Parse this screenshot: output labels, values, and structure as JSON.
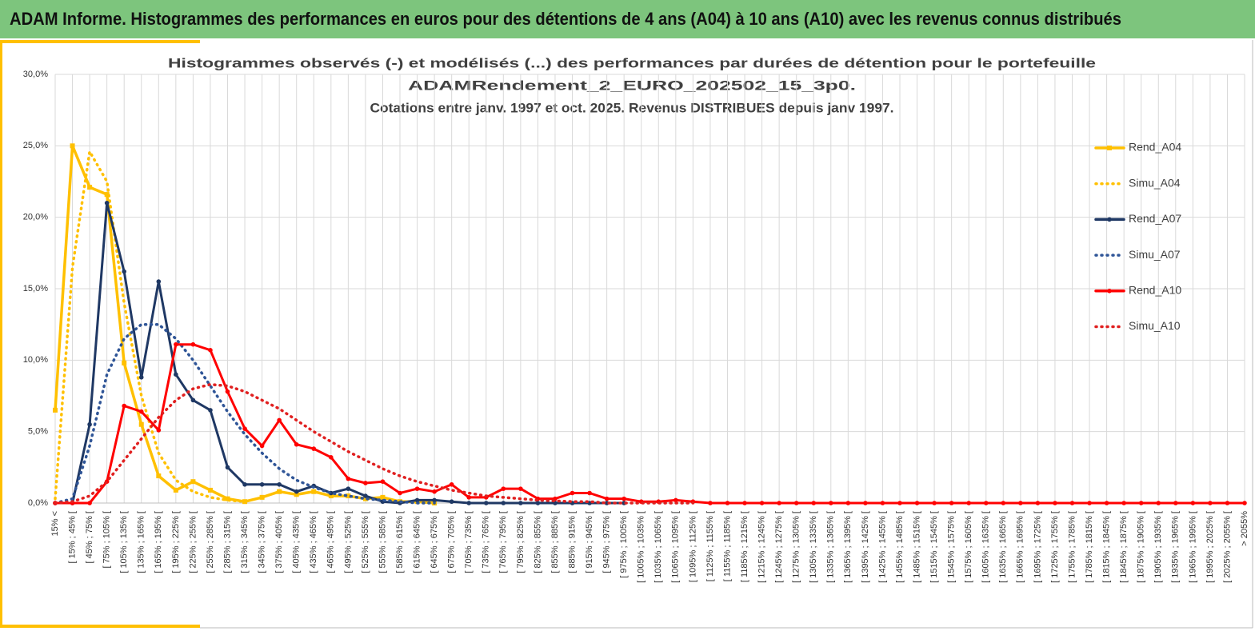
{
  "header": {
    "title": "ADAM Informe. Histogrammes des performances en euros pour des détentions de 4 ans (A04) à 10 ans (A10) avec les revenus connus distribués"
  },
  "chart_data": {
    "type": "line",
    "title": [
      "Histogrammes observés (-) et modélisés (...) des performances par durées de détention pour le portefeuille",
      "ADAMRendement_2_EURO_202502_15_3p0.",
      "Cotations entre janv. 1997 et oct. 2025. Revenus DISTRIBUES depuis janv 1997."
    ],
    "categories": [
      "15% <",
      "[ 15% ; 45% [",
      "[ 45% ; 75% [",
      "[ 75% ; 105% [",
      "[ 105% ; 135% [",
      "[ 135% ; 165% [",
      "[ 165% ; 195% [",
      "[ 195% ; 225% [",
      "[ 225% ; 255% [",
      "[ 255% ; 285% [",
      "[ 285% ; 315% [",
      "[ 315% ; 345% [",
      "[ 345% ; 375% [",
      "[ 375% ; 405% [",
      "[ 405% ; 435% [",
      "[ 435% ; 465% [",
      "[ 465% ; 495% [",
      "[ 495% ; 525% [",
      "[ 525% ; 555% [",
      "[ 555% ; 585% [",
      "[ 585% ; 615% [",
      "[ 615% ; 645% [",
      "[ 645% ; 675% [",
      "[ 675% ; 705% [",
      "[ 705% ; 735% [",
      "[ 735% ; 765% [",
      "[ 765% ; 795% [",
      "[ 795% ; 825% [",
      "[ 825% ; 855% [",
      "[ 855% ; 885% [",
      "[ 885% ; 915% [",
      "[ 915% ; 945% [",
      "[ 945% ; 975% [",
      "[ 975% ; 1005% [",
      "[ 1005% ; 1035% [",
      "[ 1035% ; 1065% [",
      "[ 1065% ; 1095% [",
      "[ 1095% ; 1125% [",
      "[ 1125% ; 1155% [",
      "[ 1155% ; 1185% [",
      "[ 1185% ; 1215% [",
      "[ 1215% ; 1245% [",
      "[ 1245% ; 1275% [",
      "[ 1275% ; 1305% [",
      "[ 1305% ; 1335% [",
      "[ 1335% ; 1365% [",
      "[ 1365% ; 1395% [",
      "[ 1395% ; 1425% [",
      "[ 1425% ; 1455% [",
      "[ 1455% ; 1485% [",
      "[ 1485% ; 1515% [",
      "[ 1515% ; 1545% [",
      "[ 1545% ; 1575% [",
      "[ 1575% ; 1605% [",
      "[ 1605% ; 1635% [",
      "[ 1635% ; 1665% [",
      "[ 1665% ; 1695% [",
      "[ 1695% ; 1725% [",
      "[ 1725% ; 1755% [",
      "[ 1755% ; 1785% [",
      "[ 1785% ; 1815% [",
      "[ 1815% ; 1845% [",
      "[ 1845% ; 1875% [",
      "[ 1875% ; 1905% [",
      "[ 1905% ; 1935% [",
      "[ 1935% ; 1965% [",
      "[ 1965% ; 1995% [",
      "[ 1995% ; 2025% [",
      "[ 2025% ; 2055% [",
      "> 2055%"
    ],
    "series": [
      {
        "name": "Rend_A04",
        "color": "#ffc000",
        "dash": "solid",
        "marker": "square",
        "values": [
          6.5,
          25,
          22.1,
          21.6,
          9.8,
          5.5,
          1.9,
          0.9,
          1.5,
          0.9,
          0.3,
          0.1,
          0.4,
          0.8,
          0.6,
          0.8,
          0.5,
          0.5,
          0.3,
          0.4,
          0.1,
          0.1,
          0,
          null,
          null,
          null,
          null,
          null,
          null,
          null,
          null,
          null,
          null,
          null,
          null,
          null,
          null,
          null,
          null,
          null,
          null,
          null,
          null,
          null,
          null,
          null,
          null,
          null,
          null,
          null,
          null,
          null,
          null,
          null,
          null,
          null,
          null,
          null,
          null,
          null,
          null,
          null,
          null,
          null,
          null,
          null,
          null,
          null,
          null,
          null
        ]
      },
      {
        "name": "Simu_A04",
        "color": "#ffc000",
        "dash": "dotted",
        "marker": null,
        "values": [
          0.3,
          16.5,
          24.6,
          22.5,
          14,
          7.5,
          3.5,
          1.6,
          0.8,
          0.4,
          0.2,
          0.1,
          null,
          null,
          null,
          null,
          null,
          null,
          null,
          null,
          null,
          null,
          null,
          null,
          null,
          null,
          null,
          null,
          null,
          null,
          null,
          null,
          null,
          null,
          null,
          null,
          null,
          null,
          null,
          null,
          null,
          null,
          null,
          null,
          null,
          null,
          null,
          null,
          null,
          null,
          null,
          null,
          null,
          null,
          null,
          null,
          null,
          null,
          null,
          null,
          null,
          null,
          null,
          null,
          null,
          null,
          null,
          null,
          null,
          null
        ]
      },
      {
        "name": "Rend_A07",
        "color": "#1f3864",
        "dash": "solid",
        "marker": "circle",
        "values": [
          0,
          0,
          5.5,
          21,
          16.2,
          8.8,
          15.5,
          9,
          7.2,
          6.5,
          2.5,
          1.3,
          1.3,
          1.3,
          0.8,
          1.2,
          0.7,
          1,
          0.5,
          0.1,
          0,
          0.2,
          0.2,
          0.1,
          0,
          0,
          0,
          0,
          0,
          0,
          0,
          0,
          0,
          0,
          null,
          null,
          null,
          null,
          null,
          null,
          null,
          null,
          null,
          null,
          null,
          null,
          null,
          null,
          null,
          null,
          null,
          null,
          null,
          null,
          null,
          null,
          null,
          null,
          null,
          null,
          null,
          null,
          null,
          null,
          null,
          null,
          null,
          null,
          null,
          null
        ]
      },
      {
        "name": "Simu_A07",
        "color": "#2f5597",
        "dash": "dotted",
        "marker": null,
        "values": [
          0,
          0.3,
          4,
          9,
          11.5,
          12.5,
          12.5,
          11.5,
          10,
          8.2,
          6.4,
          4.8,
          3.5,
          2.4,
          1.6,
          1.1,
          0.7,
          0.5,
          0.3,
          0.2,
          0.1,
          0,
          0,
          null,
          null,
          null,
          null,
          null,
          null,
          null,
          null,
          null,
          null,
          null,
          null,
          null,
          null,
          null,
          null,
          null,
          null,
          null,
          null,
          null,
          null,
          null,
          null,
          null,
          null,
          null,
          null,
          null,
          null,
          null,
          null,
          null,
          null,
          null,
          null,
          null,
          null,
          null,
          null,
          null,
          null,
          null,
          null,
          null,
          null,
          null
        ]
      },
      {
        "name": "Rend_A10",
        "color": "#ff0000",
        "dash": "solid",
        "marker": "circle",
        "values": [
          0,
          0,
          0,
          1.5,
          6.8,
          6.4,
          5.1,
          11.1,
          11.1,
          10.7,
          7.8,
          5.2,
          4,
          5.8,
          4.1,
          3.8,
          3.2,
          1.7,
          1.4,
          1.5,
          0.7,
          1,
          0.8,
          1.3,
          0.4,
          0.4,
          1,
          1,
          0.3,
          0.3,
          0.7,
          0.7,
          0.3,
          0.3,
          0.1,
          0.1,
          0.2,
          0.1,
          0,
          0,
          0,
          0,
          0,
          0,
          0,
          0,
          0,
          0,
          0,
          0,
          0,
          0,
          0,
          0,
          0,
          0,
          0,
          0,
          0,
          0,
          0,
          0,
          0,
          0,
          0,
          0,
          0,
          0,
          0,
          0
        ]
      },
      {
        "name": "Simu_A10",
        "color": "#e02020",
        "dash": "dotted",
        "marker": null,
        "values": [
          0,
          0.1,
          0.5,
          1.5,
          3,
          4.5,
          6,
          7.2,
          8,
          8.3,
          8.2,
          7.8,
          7.2,
          6.6,
          5.8,
          5,
          4.3,
          3.6,
          3,
          2.4,
          1.9,
          1.5,
          1.2,
          0.9,
          0.7,
          0.5,
          0.4,
          0.3,
          0.2,
          0.15,
          0.1,
          0.1,
          0,
          0,
          0,
          0,
          0,
          0,
          null,
          null,
          null,
          null,
          null,
          null,
          null,
          null,
          null,
          null,
          null,
          null,
          null,
          null,
          null,
          null,
          null,
          null,
          null,
          null,
          null,
          null,
          null,
          null,
          null,
          null,
          null,
          null,
          null,
          null,
          null,
          null
        ]
      }
    ],
    "ylim": [
      0,
      30
    ],
    "yticks": [
      {
        "value": 0,
        "label": "0,0%"
      },
      {
        "value": 5,
        "label": "5,0%"
      },
      {
        "value": 10,
        "label": "10,0%"
      },
      {
        "value": 15,
        "label": "15,0%"
      },
      {
        "value": 20,
        "label": "20,0%"
      },
      {
        "value": 25,
        "label": "25,0%"
      },
      {
        "value": 30,
        "label": "30,0%"
      }
    ],
    "grid": true,
    "legend": "right"
  }
}
